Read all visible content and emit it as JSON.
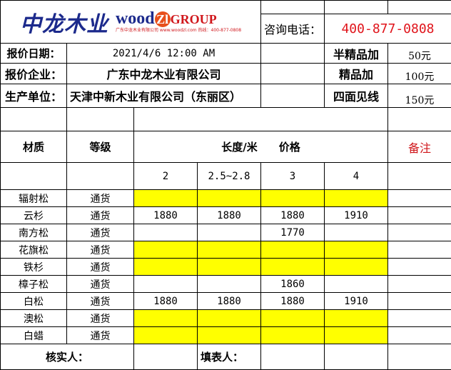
{
  "logo": {
    "cn": "中龙木业",
    "wood": "wood",
    "zl": "Zl",
    "group": "GROUP",
    "company_small": "广东中龙木业有限公司",
    "url": "www.woodzl.com",
    "hotline": "热线：400-877-0808"
  },
  "contact": {
    "label": "咨询电话：",
    "phone": "400-877-0808"
  },
  "info": {
    "date_label": "报价日期：",
    "date": "2021/4/6 12:00 AM",
    "company_label": "报价企业：",
    "company": "广东中龙木业有限公司",
    "producer_label": "生产单位：",
    "producer": "天津中新木业有限公司（东丽区）"
  },
  "surcharges": [
    {
      "label": "半精品加",
      "value": "50元"
    },
    {
      "label": "精品加",
      "value": "100元"
    },
    {
      "label": "四面见线",
      "value": "150元"
    }
  ],
  "header": {
    "material": "材质",
    "grade": "等级",
    "length_price": "长度/米　　价格",
    "remark": "备注"
  },
  "lengths": [
    "2",
    "2.5~2.8",
    "3",
    "4"
  ],
  "rows": [
    {
      "material": "辐射松",
      "grade": "通货",
      "prices": [
        "",
        "",
        "",
        ""
      ],
      "highlight": true
    },
    {
      "material": "云杉",
      "grade": "通货",
      "prices": [
        "1880",
        "1880",
        "1880",
        "1910"
      ],
      "highlight": false
    },
    {
      "material": "南方松",
      "grade": "通货",
      "prices": [
        "",
        "",
        "1770",
        ""
      ],
      "highlight": false
    },
    {
      "material": "花旗松",
      "grade": "通货",
      "prices": [
        "",
        "",
        "",
        ""
      ],
      "highlight": true
    },
    {
      "material": "铁杉",
      "grade": "通货",
      "prices": [
        "",
        "",
        "",
        ""
      ],
      "highlight": true
    },
    {
      "material": "樟子松",
      "grade": "通货",
      "prices": [
        "",
        "",
        "1860",
        ""
      ],
      "highlight": false
    },
    {
      "material": "白松",
      "grade": "通货",
      "prices": [
        "1880",
        "1880",
        "1880",
        "1910"
      ],
      "highlight": false
    },
    {
      "material": "澳松",
      "grade": "通货",
      "prices": [
        "",
        "",
        "",
        ""
      ],
      "highlight": true
    },
    {
      "material": "白蜡",
      "grade": "通货",
      "prices": [
        "",
        "",
        "",
        ""
      ],
      "highlight": true
    }
  ],
  "footer": {
    "verifier": "核实人：",
    "filler": "填表人："
  },
  "colors": {
    "highlight": "#ffff00",
    "phone": "#e0141b",
    "remark": "#d0161b",
    "logo_blue": "#1c2a8c"
  }
}
